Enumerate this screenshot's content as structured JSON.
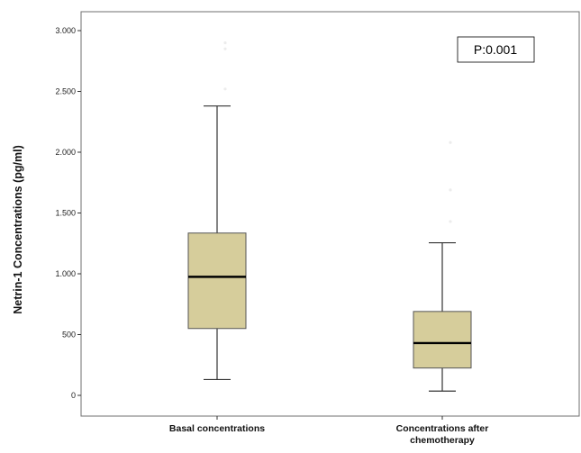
{
  "chart_data": {
    "type": "box",
    "title": "",
    "xlabel": "",
    "ylabel": "Netrin-1 Concentrations (pg/ml)",
    "ylim": [
      -150,
      3150
    ],
    "yticks": [
      0,
      500,
      1000,
      1500,
      2000,
      2500,
      3000
    ],
    "ytick_labels": [
      "0",
      "500",
      "1.000",
      "1.500",
      "2.000",
      "2.500",
      "3.000"
    ],
    "grid": false,
    "box_color": "#d6cd9b",
    "annotation": "P:0.001",
    "categories": [
      {
        "label_lines": [
          "Basal concentrations"
        ],
        "whisker_low": 130,
        "q1": 550,
        "median": 975,
        "q3": 1335,
        "whisker_high": 2380,
        "outliers": [
          2850,
          2900,
          2520
        ]
      },
      {
        "label_lines": [
          "Concentrations after",
          "chemotherapy"
        ],
        "whisker_low": 35,
        "q1": 225,
        "median": 430,
        "q3": 690,
        "whisker_high": 1255,
        "outliers": [
          2080,
          1690,
          1430
        ]
      }
    ]
  }
}
